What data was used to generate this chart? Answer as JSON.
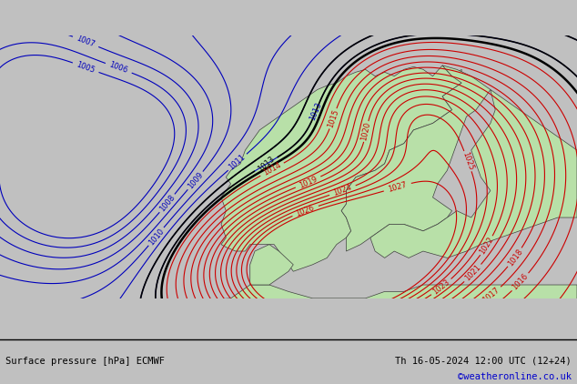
{
  "title_left": "Surface pressure [hPa] ECMWF",
  "title_right": "Th 16-05-2024 12:00 UTC (12+24)",
  "copyright": "©weatheronline.co.uk",
  "bg_color": "#d8d8d8",
  "land_color": "#b8e0a8",
  "sea_color": "#c8c8c8",
  "contour_color_red": "#cc0000",
  "contour_color_blue": "#0000bb",
  "contour_color_black": "#000000",
  "font_size_labels": 6,
  "font_size_bottom": 7.5,
  "font_size_copyright": 7.5,
  "xlim": [
    -18,
    42
  ],
  "ylim": [
    54,
    73.5
  ]
}
